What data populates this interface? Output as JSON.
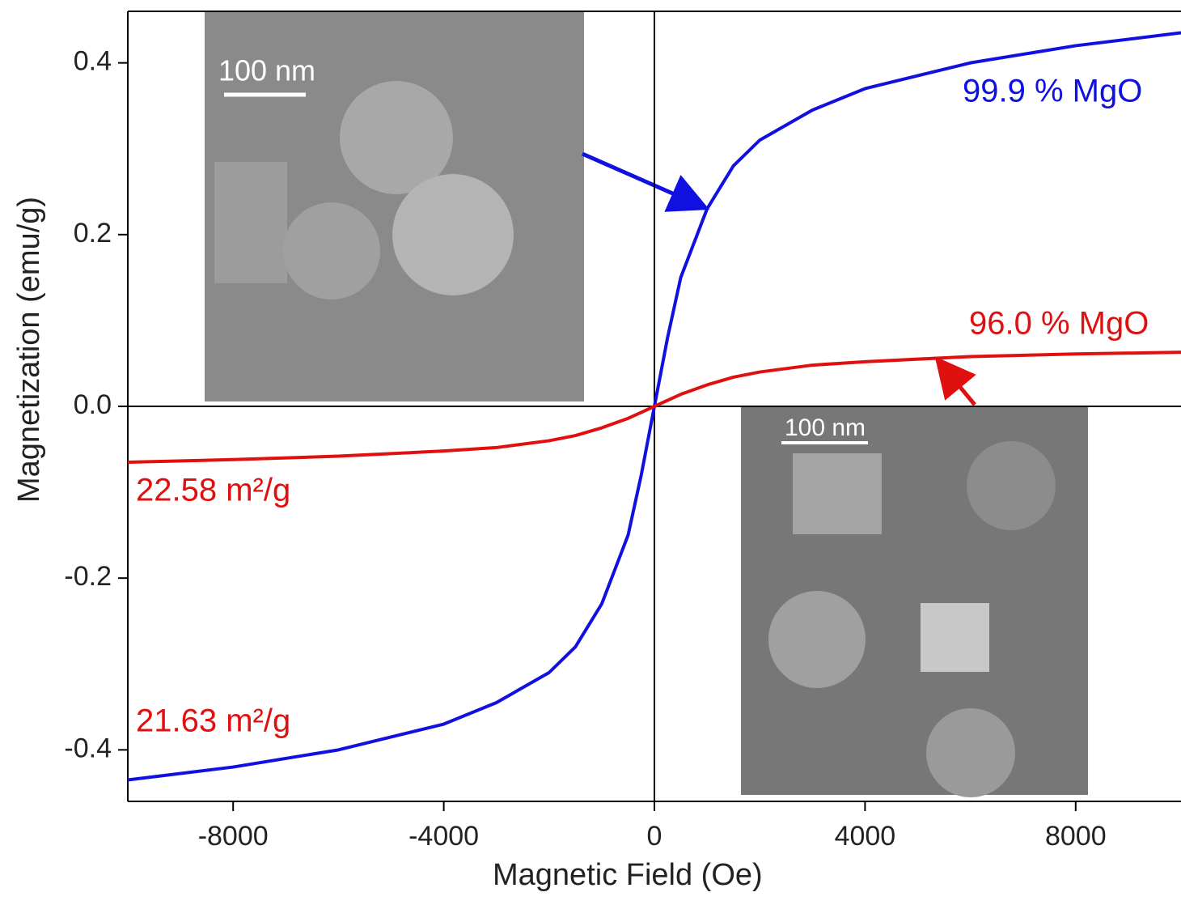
{
  "chart_data": {
    "type": "line",
    "xlabel": "Magnetic Field (Oe)",
    "ylabel": "Magnetization (emu/g)",
    "x": [
      -10000,
      -8000,
      -6000,
      -4000,
      -3000,
      -2000,
      -1500,
      -1000,
      -500,
      -250,
      0,
      250,
      500,
      1000,
      1500,
      2000,
      3000,
      4000,
      6000,
      8000,
      10000
    ],
    "series": [
      {
        "name": "99.9 % MgO",
        "color": "#1010e0",
        "values": [
          -0.435,
          -0.42,
          -0.4,
          -0.37,
          -0.345,
          -0.31,
          -0.28,
          -0.23,
          -0.15,
          -0.08,
          0,
          0.08,
          0.15,
          0.23,
          0.28,
          0.31,
          0.345,
          0.37,
          0.4,
          0.42,
          0.435
        ]
      },
      {
        "name": "96.0 % MgO",
        "color": "#e01010",
        "values": [
          -0.065,
          -0.062,
          -0.058,
          -0.052,
          -0.048,
          -0.04,
          -0.034,
          -0.025,
          -0.014,
          -0.007,
          0,
          0.007,
          0.014,
          0.025,
          0.034,
          0.04,
          0.048,
          0.052,
          0.058,
          0.061,
          0.063
        ]
      }
    ],
    "annotations": [
      "22.58 m²/g",
      "21.63 m²/g"
    ],
    "insets": [
      {
        "scale_bar": "100 nm"
      },
      {
        "scale_bar": "100 nm"
      }
    ],
    "xlim": [
      -10000,
      10000
    ],
    "ylim": [
      -0.46,
      0.46
    ],
    "xticks": [
      -8000,
      -4000,
      0,
      4000,
      8000
    ],
    "yticks": [
      -0.4,
      -0.2,
      {
        "value": 0,
        "label": "0.0"
      },
      0.2,
      0.4
    ]
  }
}
